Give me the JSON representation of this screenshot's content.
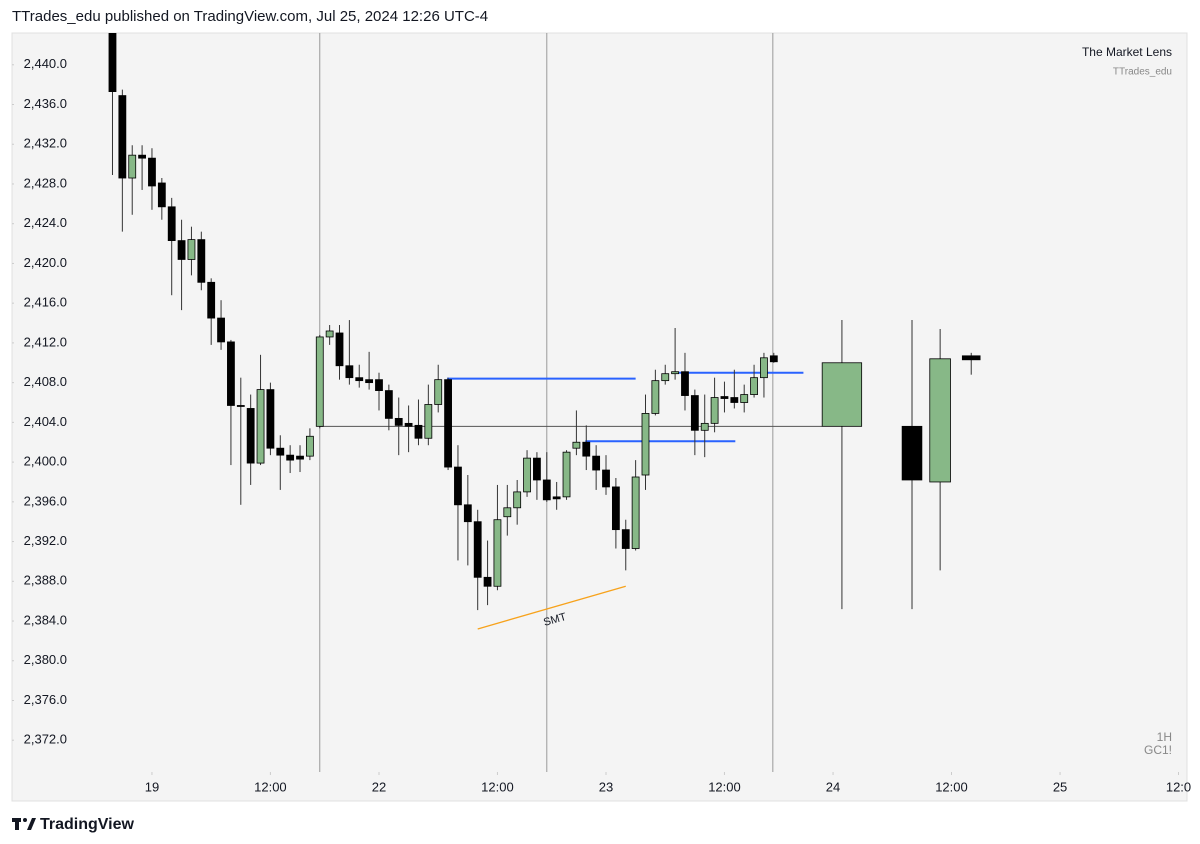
{
  "header": "TTrades_edu published on TradingView.com, Jul 25, 2024 12:26 UTC-4",
  "watermark": {
    "title": "The Market Lens",
    "author": "TTrades_edu"
  },
  "interval": "1H",
  "symbol": "GC1!",
  "footer": "TradingView",
  "chart_data": {
    "type": "candlestick",
    "up_color": "#87b887",
    "down_color": "#000000",
    "xlim": [
      -14.18,
      104.86
    ],
    "ylim": [
      2368.8,
      2443.2
    ],
    "yticks": [
      {
        "value": 2440,
        "label": "2,440.0"
      },
      {
        "value": 2436,
        "label": "2,436.0"
      },
      {
        "value": 2432,
        "label": "2,432.0"
      },
      {
        "value": 2428,
        "label": "2,428.0"
      },
      {
        "value": 2424,
        "label": "2,424.0"
      },
      {
        "value": 2420,
        "label": "2,420.0"
      },
      {
        "value": 2416,
        "label": "2,416.0"
      },
      {
        "value": 2412,
        "label": "2,412.0"
      },
      {
        "value": 2408,
        "label": "2,408.0"
      },
      {
        "value": 2404,
        "label": "2,404.0"
      },
      {
        "value": 2400,
        "label": "2,400.0"
      },
      {
        "value": 2396,
        "label": "2,396.0"
      },
      {
        "value": 2392,
        "label": "2,392.0"
      },
      {
        "value": 2388,
        "label": "2,388.0"
      },
      {
        "value": 2384,
        "label": "2,384.0"
      },
      {
        "value": 2380,
        "label": "2,380.0"
      },
      {
        "value": 2376,
        "label": "2,376.0"
      },
      {
        "value": 2372,
        "label": "2,372.0"
      }
    ],
    "xticks": [
      {
        "value": 0,
        "label": "19"
      },
      {
        "value": 12,
        "label": "12:00"
      },
      {
        "value": 23,
        "label": "22"
      },
      {
        "value": 35,
        "label": "12:00"
      },
      {
        "value": 46,
        "label": "23"
      },
      {
        "value": 58,
        "label": "12:00"
      },
      {
        "value": 69,
        "label": "24"
      },
      {
        "value": 81,
        "label": "12:00"
      },
      {
        "value": 92,
        "label": "25"
      },
      {
        "value": 104,
        "label": "12:0"
      }
    ],
    "x": [
      -4,
      -3,
      -2,
      -1,
      0,
      1,
      2,
      3,
      4,
      5,
      6,
      7,
      8,
      9,
      10,
      11,
      12,
      13,
      14,
      15,
      16,
      17,
      18,
      19,
      20,
      21,
      22,
      23,
      24,
      25,
      26,
      27,
      28,
      29,
      30,
      31,
      32,
      33,
      34,
      35,
      36,
      37,
      38,
      39,
      40,
      41,
      42,
      43,
      44,
      45,
      46,
      47,
      48,
      49,
      50,
      51,
      52,
      53,
      54,
      55,
      56,
      57,
      58,
      59,
      60,
      61,
      62,
      63
    ],
    "open": [
      2444.0,
      2436.9,
      2428.6,
      2430.9,
      2430.6,
      2428.1,
      2425.7,
      2422.3,
      2420.4,
      2422.4,
      2418.1,
      2414.5,
      2412.1,
      2405.7,
      2405.4,
      2399.9,
      2407.3,
      2401.4,
      2400.7,
      2400.6,
      2400.6,
      2403.6,
      2412.6,
      2413.0,
      2409.7,
      2408.5,
      2408.3,
      2408.3,
      2407.2,
      2404.4,
      2403.9,
      2403.7,
      2402.4,
      2405.8,
      2408.3,
      2399.5,
      2395.7,
      2394.0,
      2388.4,
      2387.5,
      2394.5,
      2395.4,
      2397.0,
      2400.4,
      2398.2,
      2396.5,
      2396.5,
      2401.4,
      2402.0,
      2400.6,
      2399.2,
      2397.5,
      2393.2,
      2391.3,
      2398.7,
      2404.9,
      2408.2,
      2408.9,
      2409.1,
      2406.7,
      2403.2,
      2403.9,
      2406.6,
      2406.5,
      2406.0,
      2406.8,
      2408.5,
      2410.7
    ],
    "high": [
      2445.0,
      2437.5,
      2431.9,
      2431.9,
      2431.6,
      2428.6,
      2426.6,
      2424.4,
      2423.7,
      2423.2,
      2418.5,
      2416.3,
      2412.3,
      2408.5,
      2406.8,
      2410.8,
      2408.0,
      2402.7,
      2401.7,
      2401.7,
      2403.4,
      2412.8,
      2413.8,
      2413.8,
      2414.3,
      2409.8,
      2411.1,
      2409.0,
      2407.8,
      2406.5,
      2405.7,
      2406.3,
      2407.8,
      2409.8,
      2408.5,
      2401.7,
      2398.7,
      2395.2,
      2392.1,
      2397.7,
      2397.7,
      2398.2,
      2401.2,
      2401.0,
      2401.0,
      2398.0,
      2401.2,
      2405.2,
      2403.7,
      2401.7,
      2400.7,
      2398.4,
      2394.2,
      2400.2,
      2406.8,
      2409.3,
      2409.8,
      2413.5,
      2411.0,
      2407.3,
      2406.8,
      2408.5,
      2408.1,
      2409.3,
      2407.8,
      2409.8,
      2411.0,
      2411.0
    ],
    "low": [
      2428.9,
      2423.2,
      2424.9,
      2427.4,
      2425.4,
      2424.4,
      2416.8,
      2415.3,
      2418.8,
      2417.3,
      2411.8,
      2411.3,
      2399.7,
      2395.7,
      2397.7,
      2399.7,
      2400.7,
      2397.2,
      2398.9,
      2399.0,
      2400.2,
      2403.4,
      2411.8,
      2408.3,
      2407.8,
      2407.5,
      2407.3,
      2405.2,
      2403.2,
      2400.7,
      2401.0,
      2401.7,
      2401.7,
      2405.0,
      2399.2,
      2390.1,
      2389.6,
      2385.1,
      2385.6,
      2387.1,
      2392.6,
      2393.7,
      2396.5,
      2396.2,
      2396.0,
      2395.2,
      2396.2,
      2400.7,
      2399.2,
      2397.2,
      2396.7,
      2391.3,
      2389.1,
      2391.1,
      2397.2,
      2404.7,
      2407.8,
      2408.3,
      2405.2,
      2400.7,
      2400.5,
      2403.0,
      2405.0,
      2405.4,
      2405.0,
      2406.5,
      2406.5,
      2410.0
    ],
    "close": [
      2437.3,
      2428.6,
      2430.9,
      2430.6,
      2427.8,
      2425.7,
      2422.3,
      2420.4,
      2422.4,
      2418.1,
      2414.5,
      2412.1,
      2405.7,
      2405.6,
      2399.9,
      2407.3,
      2401.4,
      2400.7,
      2400.2,
      2400.3,
      2402.6,
      2412.6,
      2413.2,
      2409.7,
      2408.5,
      2408.2,
      2408.0,
      2407.2,
      2404.4,
      2403.7,
      2403.6,
      2402.4,
      2405.8,
      2408.3,
      2399.5,
      2395.7,
      2394.0,
      2388.4,
      2387.5,
      2394.2,
      2395.4,
      2397.0,
      2400.4,
      2398.2,
      2396.2,
      2396.3,
      2401.0,
      2402.0,
      2400.6,
      2399.2,
      2397.5,
      2393.2,
      2391.3,
      2398.5,
      2404.9,
      2408.2,
      2408.9,
      2409.1,
      2406.7,
      2403.2,
      2403.9,
      2406.5,
      2406.4,
      2406.0,
      2406.8,
      2408.5,
      2410.5,
      2410.1
    ],
    "htf": {
      "x0": [
        67.9,
        76.0,
        78.8,
        82.1
      ],
      "x1": [
        71.9,
        78.0,
        80.9,
        83.9
      ],
      "open": [
        2403.6,
        2403.6,
        2398.0,
        2410.7
      ],
      "high": [
        2414.3,
        2414.3,
        2413.4,
        2411.0
      ],
      "low": [
        2385.2,
        2385.2,
        2389.1,
        2408.8
      ],
      "close": [
        2410.0,
        2398.2,
        2410.4,
        2410.3
      ]
    },
    "session_lines": [
      17.0,
      40.0,
      62.9
    ],
    "levels": [
      {
        "y": 2403.6,
        "x": [
          17.0,
          67.9
        ],
        "color": "#555555"
      },
      {
        "y": 2408.4,
        "x": [
          29.9,
          49.0
        ],
        "color": "#2962ff"
      },
      {
        "y": 2402.1,
        "x": [
          43.9,
          59.1
        ],
        "color": "#2962ff"
      },
      {
        "y": 2409.0,
        "x": [
          52.7,
          66.0
        ],
        "color": "#2962ff"
      }
    ],
    "trend_line": {
      "x": [
        33.0,
        48.0
      ],
      "y": [
        2383.2,
        2387.5
      ],
      "color": "#f7a21b"
    },
    "annotation": "SMT"
  }
}
